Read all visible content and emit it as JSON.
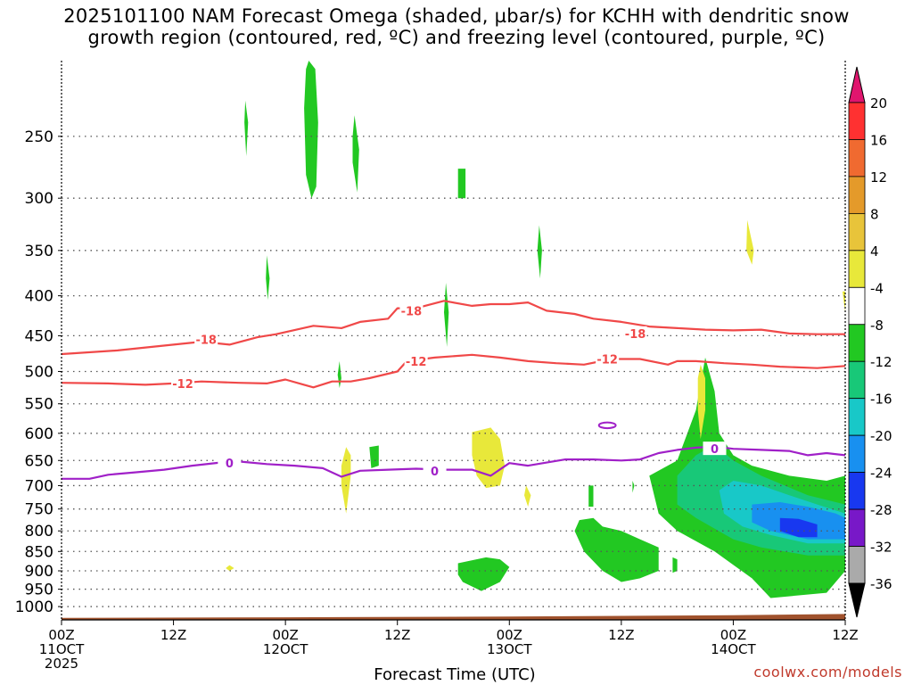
{
  "header": {
    "title": "2025101100 NAM Forecast Omega (shaded, µbar/s) for KCHH with dendritic snow\ngrowth region (contoured, red, ºC) and freezing level (contoured, purple, ºC)"
  },
  "footer": {
    "credit": "coolwx.com/models"
  },
  "chart_data": {
    "type": "time-height",
    "xlabel": "Forecast Time (UTC)",
    "ylabel": "",
    "x_ticks": [
      {
        "hour": 0,
        "line1": "00Z",
        "line2": "11OCT",
        "line3": "2025"
      },
      {
        "hour": 12,
        "line1": "12Z",
        "line2": "",
        "line3": ""
      },
      {
        "hour": 24,
        "line1": "00Z",
        "line2": "12OCT",
        "line3": ""
      },
      {
        "hour": 36,
        "line1": "12Z",
        "line2": "",
        "line3": ""
      },
      {
        "hour": 48,
        "line1": "00Z",
        "line2": "13OCT",
        "line3": ""
      },
      {
        "hour": 60,
        "line1": "12Z",
        "line2": "",
        "line3": ""
      },
      {
        "hour": 72,
        "line1": "00Z",
        "line2": "14OCT",
        "line3": ""
      },
      {
        "hour": 84,
        "line1": "12Z",
        "line2": "",
        "line3": ""
      }
    ],
    "xlim_hours": [
      0,
      84
    ],
    "y_ticks_hpa": [
      250,
      300,
      350,
      400,
      450,
      500,
      550,
      600,
      650,
      700,
      750,
      800,
      850,
      900,
      950,
      1000
    ],
    "ylim_hpa": [
      200,
      1040
    ],
    "grid": "dotted",
    "colorbar": {
      "labels": [
        20,
        16,
        12,
        8,
        4,
        -4,
        -8,
        -12,
        -16,
        -20,
        -24,
        -28,
        -32,
        -36
      ],
      "colors": [
        "#ff3131",
        "#f06a30",
        "#e49a2a",
        "#e8c43a",
        "#e8e83a",
        "#ffffff",
        "#22c822",
        "#18c878",
        "#18c8c8",
        "#1890f0",
        "#1838f0",
        "#7818c8",
        "#a818c8",
        "#aaaaaa"
      ],
      "top_arrow_color": "#e0156e",
      "bottom_arrow_color": "#000000"
    },
    "contour_dendritic_upper": {
      "color": "#f04848",
      "label": "-18",
      "label_at": [
        [
          15.5,
          455
        ],
        [
          37.5,
          418
        ],
        [
          61.5,
          447
        ]
      ],
      "points": [
        [
          0,
          475
        ],
        [
          6,
          470
        ],
        [
          12,
          462
        ],
        [
          15,
          458
        ],
        [
          18,
          462
        ],
        [
          21,
          452
        ],
        [
          23,
          448
        ],
        [
          27,
          437
        ],
        [
          30,
          440
        ],
        [
          32,
          432
        ],
        [
          35,
          428
        ],
        [
          36,
          415
        ],
        [
          38,
          415
        ],
        [
          41,
          406
        ],
        [
          44,
          412
        ],
        [
          46,
          410
        ],
        [
          48,
          410
        ],
        [
          50,
          408
        ],
        [
          52,
          418
        ],
        [
          55,
          422
        ],
        [
          57,
          428
        ],
        [
          60,
          432
        ],
        [
          63,
          438
        ],
        [
          66,
          440
        ],
        [
          69,
          442
        ],
        [
          72,
          443
        ],
        [
          75,
          442
        ],
        [
          78,
          447
        ],
        [
          81,
          448
        ],
        [
          84,
          448
        ]
      ]
    },
    "contour_dendritic_lower": {
      "color": "#f04848",
      "label": "-12",
      "label_at": [
        [
          13,
          518
        ],
        [
          38,
          485
        ],
        [
          58.5,
          482
        ]
      ],
      "points": [
        [
          0,
          517
        ],
        [
          5,
          518
        ],
        [
          9,
          520
        ],
        [
          12,
          518
        ],
        [
          15,
          515
        ],
        [
          19,
          517
        ],
        [
          22,
          518
        ],
        [
          24,
          512
        ],
        [
          26,
          520
        ],
        [
          27,
          524
        ],
        [
          29,
          515
        ],
        [
          31,
          515
        ],
        [
          33,
          510
        ],
        [
          36,
          500
        ],
        [
          37,
          485
        ],
        [
          40,
          480
        ],
        [
          44,
          476
        ],
        [
          47,
          480
        ],
        [
          50,
          485
        ],
        [
          53,
          488
        ],
        [
          56,
          490
        ],
        [
          59,
          482
        ],
        [
          62,
          482
        ],
        [
          65,
          490
        ],
        [
          66,
          485
        ],
        [
          68,
          485
        ],
        [
          71,
          488
        ],
        [
          74,
          490
        ],
        [
          77,
          493
        ],
        [
          81,
          495
        ],
        [
          84,
          492
        ]
      ]
    },
    "contour_freezing": {
      "color": "#a020c8",
      "label": "0",
      "label_at": [
        [
          18,
          655
        ],
        [
          40,
          670
        ],
        [
          70,
          628
        ]
      ],
      "points": [
        [
          0,
          686
        ],
        [
          3,
          686
        ],
        [
          5,
          678
        ],
        [
          8,
          673
        ],
        [
          11,
          668
        ],
        [
          14,
          660
        ],
        [
          17,
          654
        ],
        [
          19,
          652
        ],
        [
          22,
          657
        ],
        [
          25,
          660
        ],
        [
          28,
          665
        ],
        [
          30,
          682
        ],
        [
          32,
          670
        ],
        [
          35,
          668
        ],
        [
          38,
          666
        ],
        [
          41,
          668
        ],
        [
          44,
          668
        ],
        [
          46,
          680
        ],
        [
          48,
          655
        ],
        [
          50,
          660
        ],
        [
          54,
          648
        ],
        [
          57,
          648
        ],
        [
          60,
          650
        ],
        [
          62,
          648
        ],
        [
          64,
          636
        ],
        [
          66,
          630
        ],
        [
          68,
          626
        ],
        [
          70,
          624
        ],
        [
          72,
          628
        ],
        [
          75,
          630
        ],
        [
          78,
          632
        ],
        [
          80,
          640
        ],
        [
          82,
          636
        ],
        [
          84,
          640
        ]
      ]
    },
    "omega_regions": [
      {
        "color": "#22c822",
        "points": [
          [
            26.5,
            200
          ],
          [
            27.2,
            205
          ],
          [
            27.5,
            240
          ],
          [
            27.3,
            290
          ],
          [
            26.8,
            300
          ],
          [
            26.2,
            280
          ],
          [
            26.0,
            230
          ],
          [
            26.2,
            205
          ]
        ]
      },
      {
        "color": "#22c822",
        "points": [
          [
            19.7,
            225
          ],
          [
            20.0,
            240
          ],
          [
            19.8,
            265
          ],
          [
            19.6,
            240
          ]
        ]
      },
      {
        "color": "#22c822",
        "points": [
          [
            31.4,
            235
          ],
          [
            31.9,
            260
          ],
          [
            31.7,
            295
          ],
          [
            31.2,
            270
          ],
          [
            31.2,
            250
          ]
        ]
      },
      {
        "color": "#22c822",
        "points": [
          [
            22.0,
            355
          ],
          [
            22.3,
            380
          ],
          [
            22.1,
            405
          ],
          [
            21.9,
            380
          ]
        ]
      },
      {
        "color": "#22c822",
        "points": [
          [
            42.5,
            275
          ],
          [
            43.3,
            275
          ],
          [
            43.3,
            300
          ],
          [
            42.5,
            300
          ]
        ]
      },
      {
        "color": "#22c822",
        "points": [
          [
            51.2,
            325
          ],
          [
            51.5,
            350
          ],
          [
            51.3,
            380
          ],
          [
            51.0,
            350
          ]
        ]
      },
      {
        "color": "#22c822",
        "points": [
          [
            41.2,
            385
          ],
          [
            41.5,
            420
          ],
          [
            41.3,
            465
          ],
          [
            41.0,
            420
          ]
        ]
      },
      {
        "color": "#22c822",
        "points": [
          [
            29.8,
            485
          ],
          [
            30.0,
            510
          ],
          [
            29.8,
            525
          ],
          [
            29.6,
            505
          ]
        ]
      },
      {
        "color": "#22c822",
        "points": [
          [
            33.0,
            625
          ],
          [
            34.0,
            622
          ],
          [
            34.0,
            660
          ],
          [
            33.2,
            665
          ]
        ]
      },
      {
        "color": "#22c822",
        "points": [
          [
            56.5,
            700
          ],
          [
            57,
            700
          ],
          [
            57,
            745
          ],
          [
            56.5,
            745
          ]
        ]
      },
      {
        "color": "#22c822",
        "points": [
          [
            61.2,
            690
          ],
          [
            61.4,
            700
          ],
          [
            61.2,
            715
          ]
        ]
      },
      {
        "color": "#22c822",
        "points": [
          [
            42.5,
            880
          ],
          [
            45.5,
            865
          ],
          [
            47,
            870
          ],
          [
            48,
            890
          ],
          [
            47,
            930
          ],
          [
            45,
            955
          ],
          [
            43,
            930
          ],
          [
            42.5,
            910
          ]
        ]
      },
      {
        "color": "#22c822",
        "points": [
          [
            65.5,
            865
          ],
          [
            66,
            870
          ],
          [
            66,
            900
          ],
          [
            65.5,
            905
          ]
        ]
      },
      {
        "color": "#22c822",
        "points": [
          [
            55.5,
            775
          ],
          [
            57,
            770
          ],
          [
            58,
            790
          ],
          [
            60,
            800
          ],
          [
            62,
            820
          ],
          [
            64,
            840
          ],
          [
            64,
            900
          ],
          [
            62,
            920
          ],
          [
            60,
            930
          ],
          [
            58,
            900
          ],
          [
            56,
            850
          ],
          [
            55,
            800
          ]
        ]
      },
      {
        "color": "#22c822",
        "points": [
          [
            63,
            680
          ],
          [
            66,
            650
          ],
          [
            68,
            560
          ],
          [
            69,
            480
          ],
          [
            70,
            530
          ],
          [
            70.5,
            600
          ],
          [
            72,
            640
          ],
          [
            74,
            660
          ],
          [
            78,
            680
          ],
          [
            82,
            690
          ],
          [
            84,
            680
          ],
          [
            84,
            900
          ],
          [
            82,
            960
          ],
          [
            76,
            975
          ],
          [
            74,
            920
          ],
          [
            70,
            850
          ],
          [
            66,
            800
          ],
          [
            64,
            760
          ]
        ]
      },
      {
        "color": "#18c878",
        "points": [
          [
            66,
            680
          ],
          [
            68,
            640
          ],
          [
            70,
            620
          ],
          [
            72,
            650
          ],
          [
            75,
            680
          ],
          [
            80,
            720
          ],
          [
            84,
            740
          ],
          [
            84,
            860
          ],
          [
            80,
            860
          ],
          [
            75,
            840
          ],
          [
            72,
            820
          ],
          [
            68,
            770
          ],
          [
            66,
            740
          ]
        ]
      },
      {
        "color": "#18c8c8",
        "points": [
          [
            70.5,
            710
          ],
          [
            72,
            690
          ],
          [
            75,
            700
          ],
          [
            78,
            720
          ],
          [
            81,
            740
          ],
          [
            84,
            760
          ],
          [
            84,
            830
          ],
          [
            80,
            830
          ],
          [
            76,
            810
          ],
          [
            73,
            790
          ],
          [
            71,
            760
          ]
        ]
      },
      {
        "color": "#1890f0",
        "points": [
          [
            74,
            740
          ],
          [
            77,
            735
          ],
          [
            80,
            745
          ],
          [
            83,
            760
          ],
          [
            84,
            770
          ],
          [
            84,
            820
          ],
          [
            80,
            820
          ],
          [
            76,
            800
          ],
          [
            74,
            780
          ]
        ]
      },
      {
        "color": "#1838f0",
        "points": [
          [
            77,
            770
          ],
          [
            79,
            772
          ],
          [
            81,
            785
          ],
          [
            81,
            815
          ],
          [
            79,
            815
          ],
          [
            77,
            800
          ]
        ]
      },
      {
        "color": "#e8e83a",
        "points": [
          [
            30.5,
            625
          ],
          [
            31,
            640
          ],
          [
            31,
            680
          ],
          [
            30.5,
            760
          ],
          [
            30,
            700
          ],
          [
            30,
            660
          ]
        ]
      },
      {
        "color": "#e8e83a",
        "points": [
          [
            44,
            598
          ],
          [
            46,
            590
          ],
          [
            47,
            610
          ],
          [
            47.5,
            660
          ],
          [
            47,
            700
          ],
          [
            45.5,
            705
          ],
          [
            44.5,
            680
          ],
          [
            44,
            640
          ]
        ]
      },
      {
        "color": "#e8e83a",
        "points": [
          [
            49.8,
            700
          ],
          [
            50.3,
            720
          ],
          [
            50,
            745
          ],
          [
            49.6,
            720
          ]
        ]
      },
      {
        "color": "#e8e83a",
        "points": [
          [
            68.5,
            490
          ],
          [
            69,
            510
          ],
          [
            69,
            560
          ],
          [
            68.5,
            610
          ],
          [
            68.2,
            560
          ],
          [
            68.2,
            510
          ]
        ]
      },
      {
        "color": "#e8e83a",
        "points": [
          [
            73.5,
            320
          ],
          [
            74.2,
            350
          ],
          [
            74,
            365
          ],
          [
            73.4,
            350
          ]
        ]
      },
      {
        "color": "#e8e83a",
        "points": [
          [
            18,
            885
          ],
          [
            18.5,
            893
          ],
          [
            18,
            900
          ],
          [
            17.6,
            893
          ]
        ]
      },
      {
        "color": "#e8e83a",
        "points": [
          [
            83.7,
            395
          ],
          [
            84,
            395
          ],
          [
            84,
            420
          ]
        ]
      }
    ],
    "small_ring": {
      "color": "#a020c8",
      "center": [
        58.5,
        586
      ],
      "rx_hours": 0.9,
      "ry_hpa": 5
    }
  }
}
